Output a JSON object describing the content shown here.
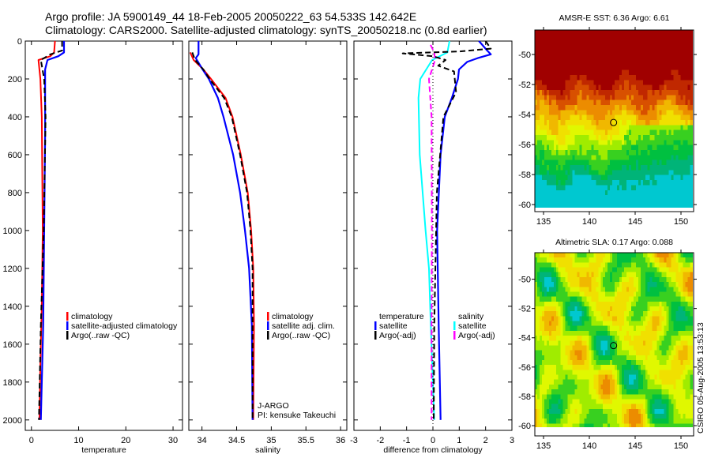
{
  "title": {
    "line1": "Argo profile: JA 5900149_44 18-Feb-2005 20050222_63 54.533S 142.642E",
    "line2": "Climatology: CARS2000. Satellite-adjusted climatology: synTS_20050218.nc (0.8d earlier)"
  },
  "footer": "CSIRO 05-Aug-2005 13:53:13",
  "chart_data": [
    {
      "type": "line",
      "id": "temperature",
      "xlabel": "temperature",
      "ylabel": "",
      "xlim": [
        -1.3,
        32
      ],
      "ylim": [
        2055,
        0
      ],
      "xticks": [
        0,
        10,
        20,
        30
      ],
      "yticks": [
        0,
        200,
        400,
        600,
        800,
        1000,
        1200,
        1400,
        1600,
        1800,
        2000
      ],
      "legend": [
        {
          "label": "climatology",
          "color": "#ff0000"
        },
        {
          "label": "satellite-adjusted climatology",
          "color": "#0000ff"
        },
        {
          "label": "Argo(..raw -QC)",
          "color": "#000000"
        }
      ],
      "series": [
        {
          "name": "climatology",
          "color": "#ff0000",
          "style": "solid",
          "depth": [
            0,
            60,
            80,
            100,
            200,
            400,
            1000,
            1400,
            1700,
            2000
          ],
          "values": [
            5.0,
            4.8,
            4.0,
            1.5,
            1.9,
            2.2,
            2.4,
            2.2,
            1.9,
            1.7
          ]
        },
        {
          "name": "satellite-adjusted climatology",
          "color": "#0000ff",
          "style": "solid",
          "depth": [
            0,
            60,
            80,
            100,
            150,
            500,
            1000,
            1500,
            2000
          ],
          "values": [
            6.9,
            6.9,
            5.7,
            3.4,
            2.9,
            2.9,
            2.7,
            2.5,
            2.0
          ],
          "width": 2.2
        },
        {
          "name": "Argo(..raw -QC)",
          "color": "#000000",
          "style": "dashed",
          "depth": [
            0,
            50,
            70,
            100,
            200,
            400,
            1000,
            1500,
            2000
          ],
          "values": [
            6.5,
            6.5,
            4.0,
            2.0,
            2.7,
            3.0,
            2.6,
            2.0,
            1.6
          ]
        }
      ]
    },
    {
      "type": "line",
      "id": "salinity",
      "xlabel": "salinity",
      "xlim": [
        33.81,
        36.09
      ],
      "ylim": [
        2055,
        0
      ],
      "xticks": [
        34,
        34.5,
        35,
        35.5,
        36
      ],
      "yticks": [
        0,
        200,
        400,
        600,
        800,
        1000,
        1200,
        1400,
        1600,
        1800,
        2000
      ],
      "legend": [
        {
          "label": "climatology",
          "color": "#ff0000"
        },
        {
          "label": "satellite adj. clim.",
          "color": "#0000ff"
        },
        {
          "label": "Argo(..raw -QC)",
          "color": "#000000"
        }
      ],
      "annotations": [
        "J-ARGO",
        "PI: kensuke Takeuchi"
      ],
      "series": [
        {
          "name": "climatology",
          "color": "#ff0000",
          "style": "solid",
          "depth": [
            60,
            100,
            150,
            200,
            300,
            400,
            600,
            800,
            1000,
            1200,
            1500,
            2000
          ],
          "values": [
            33.83,
            33.88,
            34.02,
            34.13,
            34.34,
            34.44,
            34.56,
            34.66,
            34.71,
            34.74,
            34.75,
            34.74
          ]
        },
        {
          "name": "satellite adj. clim.",
          "color": "#0000ff",
          "style": "solid",
          "depth": [
            0,
            70,
            90,
            150,
            200,
            300,
            400,
            600,
            800,
            1000,
            1200,
            1500,
            2000
          ],
          "values": [
            33.95,
            33.95,
            33.91,
            34.01,
            34.1,
            34.23,
            34.31,
            34.45,
            34.55,
            34.62,
            34.68,
            34.72,
            34.73
          ],
          "width": 2.2
        },
        {
          "name": "Argo(..raw -QC)",
          "color": "#000000",
          "style": "dashed",
          "depth": [
            60,
            100,
            150,
            200,
            300,
            400,
            600,
            800,
            1000,
            1200,
            1500,
            2000
          ],
          "values": [
            33.86,
            33.9,
            34.02,
            34.11,
            34.32,
            34.43,
            34.55,
            34.65,
            34.7,
            34.73,
            34.73,
            34.73
          ]
        }
      ]
    },
    {
      "type": "line",
      "id": "difference",
      "xlabel": "difference from climatology",
      "xlim": [
        -3,
        3
      ],
      "ylim": [
        2055,
        0
      ],
      "xticks": [
        -3,
        -2,
        -1,
        0,
        1,
        2,
        3
      ],
      "yticks": [
        0,
        200,
        400,
        600,
        800,
        1000,
        1200,
        1400,
        1600,
        1800,
        2000
      ],
      "legend_temperature": {
        "heading": "temperature",
        "items": [
          {
            "label": "satellite",
            "color": "#0000ff"
          },
          {
            "label": "Argo(-adj)",
            "color": "#000000"
          }
        ]
      },
      "legend_salinity": {
        "heading": "salinity",
        "items": [
          {
            "label": "satellite",
            "color": "#00ffff"
          },
          {
            "label": "Argo(-adj)",
            "color": "#ff00ff"
          }
        ]
      },
      "series": [
        {
          "name": "salinity satellite",
          "color": "#00ffff",
          "style": "solid",
          "depth": [
            0,
            60,
            100,
            200,
            300,
            600,
            1000,
            1200,
            1500,
            2000
          ],
          "values": [
            0.63,
            0.55,
            -0.03,
            -0.48,
            -0.55,
            -0.5,
            -0.28,
            -0.15,
            -0.08,
            0.05
          ]
        },
        {
          "name": "salinity Argo(-adj)",
          "color": "#ff00ff",
          "style": "dashed",
          "depth": [
            20,
            60,
            100,
            200,
            400,
            1000,
            1500,
            2000
          ],
          "values": [
            -0.09,
            0.05,
            0.08,
            -0.15,
            -0.05,
            -0.04,
            -0.05,
            -0.05
          ]
        },
        {
          "name": "temperature satellite",
          "color": "#0000ff",
          "style": "solid",
          "depth": [
            0,
            50,
            70,
            90,
            110,
            150,
            200,
            300,
            400,
            600,
            1000,
            1500,
            2000
          ],
          "values": [
            1.75,
            2.06,
            2.2,
            1.7,
            1.3,
            0.99,
            0.95,
            0.72,
            0.45,
            0.29,
            0.16,
            0.22,
            0.29
          ],
          "width": 2.2
        },
        {
          "name": "temperature Argo(-adj)",
          "color": "#000000",
          "style": "dashed",
          "depth": [
            0,
            40,
            55,
            65,
            80,
            100,
            130,
            160,
            270,
            400,
            800,
            1500,
            2000
          ],
          "values": [
            2.0,
            2.2,
            1.0,
            -1.15,
            0.0,
            0.48,
            0.2,
            0.8,
            0.88,
            0.4,
            0.15,
            0.05,
            0.03
          ]
        },
        {
          "name": "zero line",
          "color": "#000000",
          "style": "dotted",
          "depth": [
            0,
            2050
          ],
          "values": [
            0,
            0
          ],
          "width": 1
        }
      ]
    },
    {
      "type": "heatmap",
      "id": "sst-map",
      "title": "AMSR-E SST: 6.36 Argo: 6.61",
      "xlim": [
        134.05,
        151.38
      ],
      "ylim": [
        -48.37,
        -60.47
      ],
      "data_lat_min": -60.2,
      "xticks": [
        135,
        140,
        145,
        150
      ],
      "yticks": [
        -50,
        -52,
        -54,
        -56,
        -58,
        -60
      ],
      "marker": {
        "lon": 142.642,
        "lat": -54.533
      }
    },
    {
      "type": "heatmap",
      "id": "sla-map",
      "title": "Altimetric SLA: 0.17 Argo: 0.088",
      "xlim": [
        134.05,
        151.38
      ],
      "ylim": [
        -48.19,
        -60.7
      ],
      "data_lat_min": -60.1,
      "xticks": [
        135,
        140,
        145,
        150
      ],
      "yticks": [
        -50,
        -52,
        -54,
        -56,
        -58,
        -60
      ],
      "marker": {
        "lon": 142.642,
        "lat": -54.533
      }
    }
  ]
}
